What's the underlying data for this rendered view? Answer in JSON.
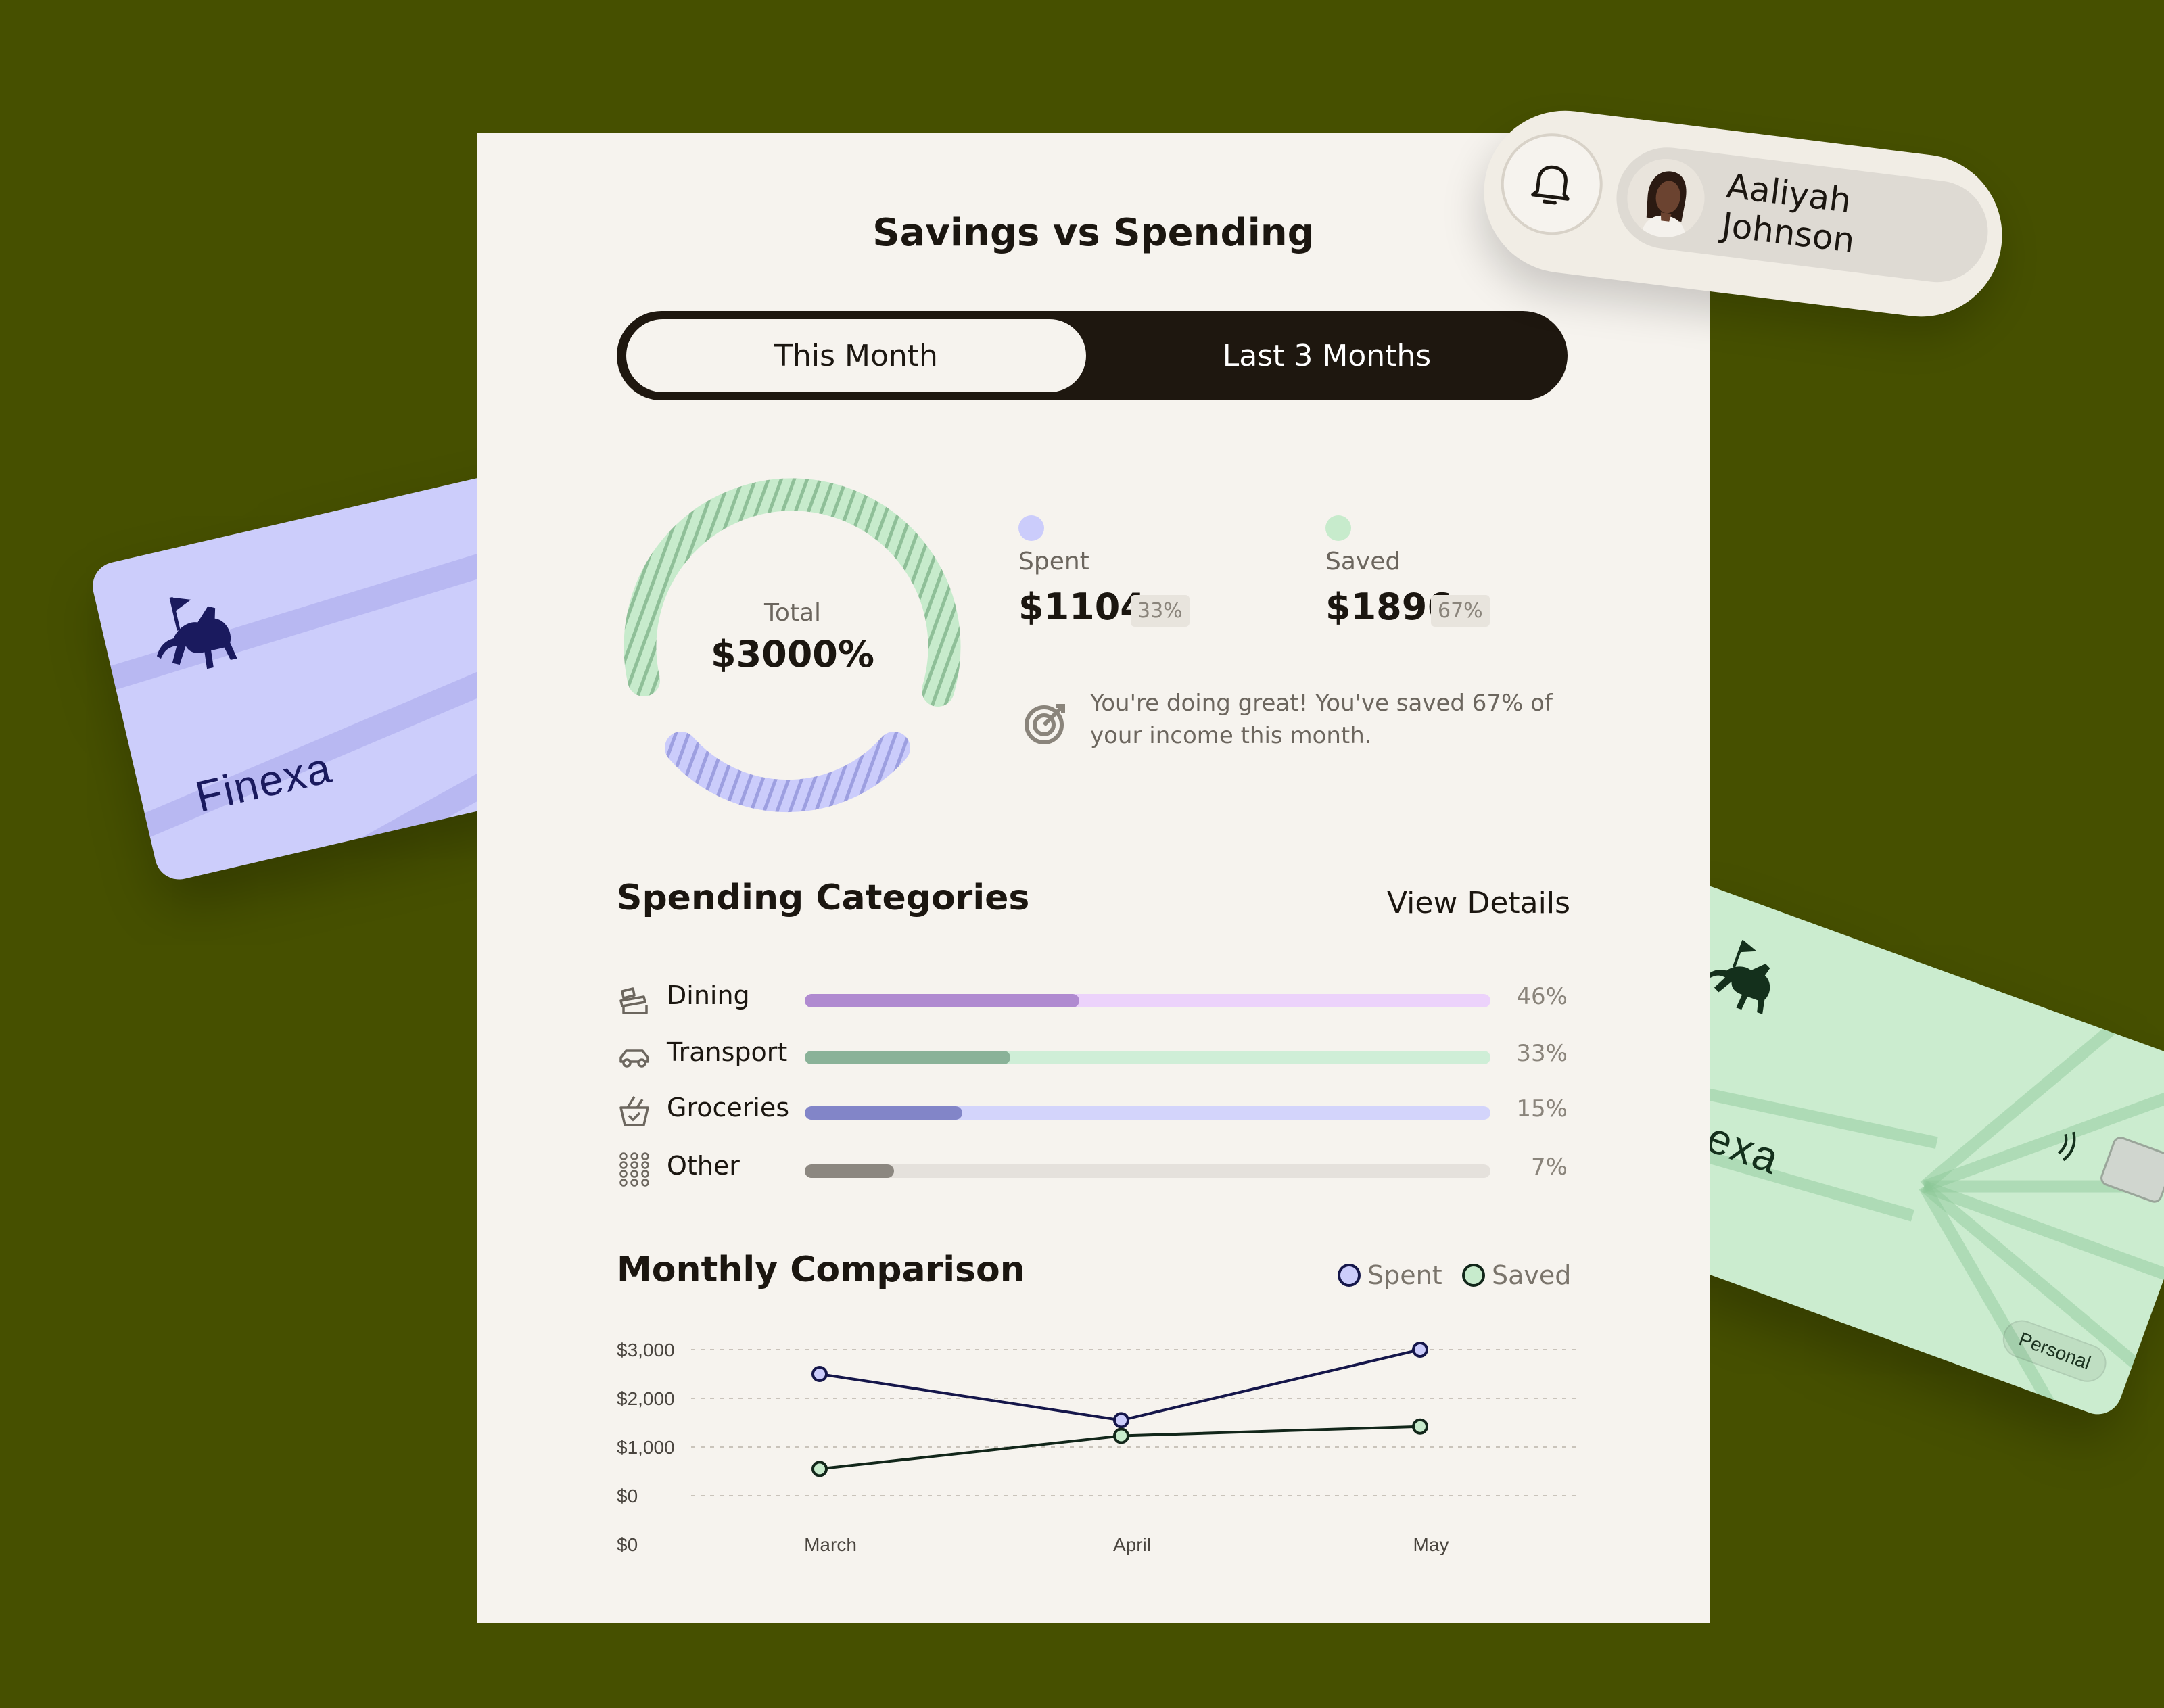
{
  "header": {
    "title": "Savings vs Spending"
  },
  "period_toggle": {
    "options": [
      "This Month",
      "Last 3 Months"
    ],
    "selected": "This Month"
  },
  "summary": {
    "total_label": "Total",
    "total_value": "$3000%",
    "spent": {
      "label": "Spent",
      "value": "$1104",
      "pct": "33%",
      "color": "#cbccfb"
    },
    "saved": {
      "label": "Saved",
      "value": "$1896",
      "pct": "67%",
      "color": "#c7ebcc"
    },
    "message": "You're doing great! You've saved 67% of your income this month."
  },
  "categories": {
    "title": "Spending Categories",
    "link": "View Details",
    "items": [
      {
        "label": "Dining",
        "pct": "46%",
        "fill": 0.4,
        "track": "#ecd2fb",
        "color": "#b08ad0",
        "icon": "dining-icon"
      },
      {
        "label": "Transport",
        "pct": "33%",
        "fill": 0.3,
        "track": "#cfeed7",
        "color": "#8ab298",
        "icon": "car-icon"
      },
      {
        "label": "Groceries",
        "pct": "15%",
        "fill": 0.23,
        "track": "#d3d4fb",
        "color": "#8285c8",
        "icon": "basket-icon"
      },
      {
        "label": "Other",
        "pct": "7%",
        "fill": 0.13,
        "track": "#e5e1dc",
        "color": "#8c8780",
        "icon": "grid-dots-icon"
      }
    ]
  },
  "monthly": {
    "title": "Monthly Comparison",
    "legend": [
      {
        "name": "Spent",
        "color": "#cbccfb",
        "stroke": "#15164a"
      },
      {
        "name": "Saved",
        "color": "#c7ebcc",
        "stroke": "#12261a"
      }
    ]
  },
  "chart_data": {
    "type": "line",
    "categories": [
      "March",
      "April",
      "May"
    ],
    "y_tick_labels": [
      "$3,000",
      "$2,000",
      "$1,000",
      "$0",
      "$0"
    ],
    "ylim": [
      0,
      3000
    ],
    "grid": true,
    "legend_position": "top-right",
    "series": [
      {
        "name": "Spent",
        "values": [
          2500,
          1550,
          3000
        ],
        "color": "#15164a"
      },
      {
        "name": "Saved",
        "values": [
          550,
          1230,
          1420
        ],
        "color": "#12261a"
      }
    ]
  },
  "user": {
    "name": "Aaliyah Johnson"
  },
  "cards": {
    "blue_brand": "Finexa",
    "green_brand": "Finexa",
    "green_tag": "Personal"
  }
}
